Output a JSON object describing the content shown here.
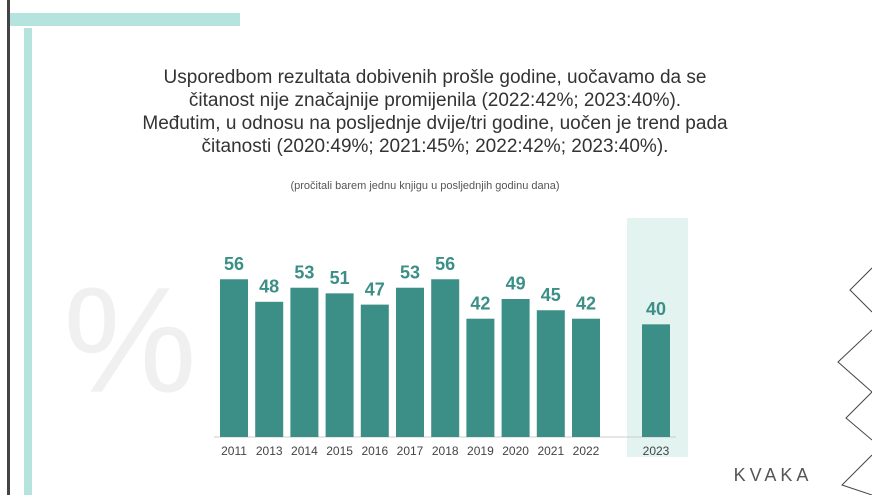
{
  "chart_data": {
    "type": "bar",
    "title": [
      "Usporedbom rezultata dobivenih prošle godine, uočavamo da se",
      "čitanost nije značajnije promijenila (2022:42%; 2023:40%).",
      "Međutim, u odnosu na posljednje dvije/tri godine, uočen je trend pada",
      "čitanosti (2020:49%; 2021:45%; 2022:42%; 2023:40%)."
    ],
    "subtitle": "(pročitali barem jednu knjigu u posljednjih godinu dana)",
    "watermark": "%",
    "logo": "KVAKA",
    "categories": [
      "2011",
      "2013",
      "2014",
      "2015",
      "2016",
      "2017",
      "2018",
      "2019",
      "2020",
      "2021",
      "2022",
      "2023"
    ],
    "values": [
      56,
      48,
      53,
      51,
      47,
      53,
      56,
      42,
      49,
      45,
      42,
      40
    ],
    "color": "#3b8f86",
    "ylim": [
      0,
      60
    ]
  }
}
